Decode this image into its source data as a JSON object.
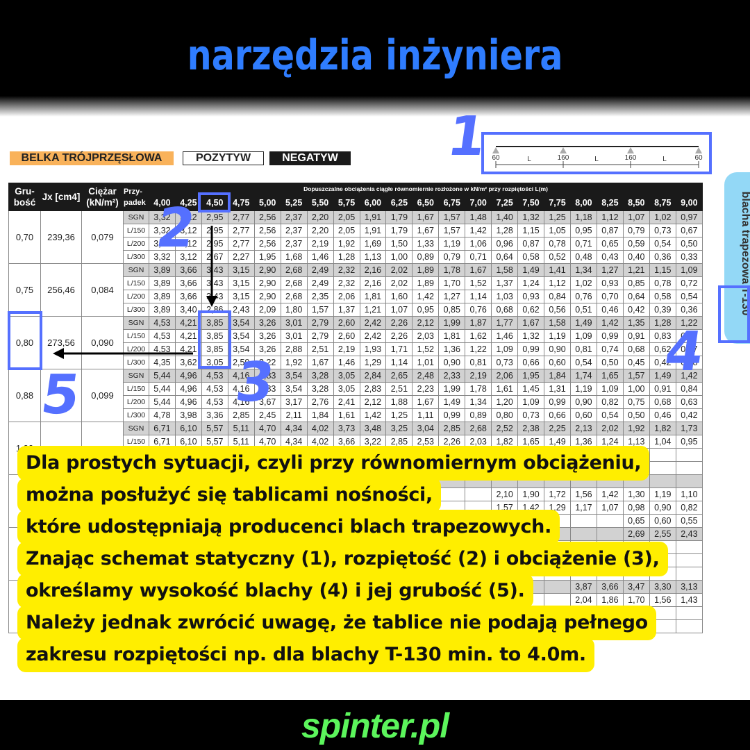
{
  "header": {
    "title": "narzędzia inżyniera"
  },
  "footer": {
    "brand": "spinter.pl"
  },
  "labels": {
    "beam": "BELKA TRÓJPRZĘSŁOWA",
    "positive": "POZYTYW",
    "negative": "NEGATYW"
  },
  "diagram": {
    "supports": [
      "60",
      "160",
      "160",
      "60"
    ],
    "span_label": "L"
  },
  "side_tab": {
    "label": "blacha trapezowa T-130",
    "color": "#93d8f6"
  },
  "annotations": {
    "numbers": [
      "1",
      "2",
      "3",
      "4",
      "5"
    ],
    "color": "#5570ff"
  },
  "colors": {
    "title": "#2f7dff",
    "brand": "#5cf55c",
    "callout": "#ffee00",
    "beam_label": "#f9b25a"
  },
  "table": {
    "headers": {
      "thickness": "Gru-\nbość",
      "jx": "Jx [cm4]",
      "weight": "Ciężar\n(kN/m²)",
      "case": "Przy-\npadek",
      "load_title": "Dopuszczalne obciążenia ciągłe równomiernie rozłożone w kN/m² przy rozpiętości L(m)"
    },
    "spans": [
      "4,00",
      "4,25",
      "4,50",
      "4,75",
      "5,00",
      "5,25",
      "5,50",
      "5,75",
      "6,00",
      "6,25",
      "6,50",
      "6,75",
      "7,00",
      "7,25",
      "7,50",
      "7,75",
      "8,00",
      "8,25",
      "8,50",
      "8,75",
      "9,00"
    ],
    "groups": [
      {
        "thickness": "0,70",
        "jx": "239,36",
        "weight": "0,079",
        "rows": [
          {
            "case": "SGN",
            "values": [
              "3,32",
              "3,12",
              "2,95",
              "2,77",
              "2,56",
              "2,37",
              "2,20",
              "2,05",
              "1,91",
              "1,79",
              "1,67",
              "1,57",
              "1,48",
              "1,40",
              "1,32",
              "1,25",
              "1,18",
              "1,12",
              "1,07",
              "1,02",
              "0,97"
            ]
          },
          {
            "case": "L/150",
            "values": [
              "3,32",
              "3,12",
              "2,95",
              "2,77",
              "2,56",
              "2,37",
              "2,20",
              "2,05",
              "1,91",
              "1,79",
              "1,67",
              "1,57",
              "1,42",
              "1,28",
              "1,15",
              "1,05",
              "0,95",
              "0,87",
              "0,79",
              "0,73",
              "0,67"
            ]
          },
          {
            "case": "L/200",
            "values": [
              "3,32",
              "3,12",
              "2,95",
              "2,77",
              "2,56",
              "2,37",
              "2,19",
              "1,92",
              "1,69",
              "1,50",
              "1,33",
              "1,19",
              "1,06",
              "0,96",
              "0,87",
              "0,78",
              "0,71",
              "0,65",
              "0,59",
              "0,54",
              "0,50"
            ]
          },
          {
            "case": "L/300",
            "values": [
              "3,32",
              "3,12",
              "2,67",
              "2,27",
              "1,95",
              "1,68",
              "1,46",
              "1,28",
              "1,13",
              "1,00",
              "0,89",
              "0,79",
              "0,71",
              "0,64",
              "0,58",
              "0,52",
              "0,48",
              "0,43",
              "0,40",
              "0,36",
              "0,33"
            ]
          }
        ]
      },
      {
        "thickness": "0,75",
        "jx": "256,46",
        "weight": "0,084",
        "rows": [
          {
            "case": "SGN",
            "values": [
              "3,89",
              "3,66",
              "3,43",
              "3,15",
              "2,90",
              "2,68",
              "2,49",
              "2,32",
              "2,16",
              "2,02",
              "1,89",
              "1,78",
              "1,67",
              "1,58",
              "1,49",
              "1,41",
              "1,34",
              "1,27",
              "1,21",
              "1,15",
              "1,09"
            ]
          },
          {
            "case": "L/150",
            "values": [
              "3,89",
              "3,66",
              "3,43",
              "3,15",
              "2,90",
              "2,68",
              "2,49",
              "2,32",
              "2,16",
              "2,02",
              "1,89",
              "1,70",
              "1,52",
              "1,37",
              "1,24",
              "1,12",
              "1,02",
              "0,93",
              "0,85",
              "0,78",
              "0,72"
            ]
          },
          {
            "case": "L/200",
            "values": [
              "3,89",
              "3,66",
              "3,43",
              "3,15",
              "2,90",
              "2,68",
              "2,35",
              "2,06",
              "1,81",
              "1,60",
              "1,42",
              "1,27",
              "1,14",
              "1,03",
              "0,93",
              "0,84",
              "0,76",
              "0,70",
              "0,64",
              "0,58",
              "0,54"
            ]
          },
          {
            "case": "L/300",
            "values": [
              "3,89",
              "3,40",
              "2,86",
              "2,43",
              "2,09",
              "1,80",
              "1,57",
              "1,37",
              "1,21",
              "1,07",
              "0,95",
              "0,85",
              "0,76",
              "0,68",
              "0,62",
              "0,56",
              "0,51",
              "0,46",
              "0,42",
              "0,39",
              "0,36"
            ]
          }
        ]
      },
      {
        "thickness": "0,80",
        "jx": "273,56",
        "weight": "0,090",
        "rows": [
          {
            "case": "SGN",
            "values": [
              "4,53",
              "4,21",
              "3,85",
              "3,54",
              "3,26",
              "3,01",
              "2,79",
              "2,60",
              "2,42",
              "2,26",
              "2,12",
              "1,99",
              "1,87",
              "1,77",
              "1,67",
              "1,58",
              "1,49",
              "1,42",
              "1,35",
              "1,28",
              "1,22"
            ]
          },
          {
            "case": "L/150",
            "values": [
              "4,53",
              "4,21",
              "3,85",
              "3,54",
              "3,26",
              "3,01",
              "2,79",
              "2,60",
              "2,42",
              "2,26",
              "2,03",
              "1,81",
              "1,62",
              "1,46",
              "1,32",
              "1,19",
              "1,09",
              "0,99",
              "0,91",
              "0,83",
              "0,77"
            ]
          },
          {
            "case": "L/200",
            "values": [
              "4,53",
              "4,21",
              "3,85",
              "3,54",
              "3,26",
              "2,88",
              "2,51",
              "2,19",
              "1,93",
              "1,71",
              "1,52",
              "1,36",
              "1,22",
              "1,09",
              "0,99",
              "0,90",
              "0,81",
              "0,74",
              "0,68",
              "0,62",
              "0,57"
            ]
          },
          {
            "case": "L/300",
            "values": [
              "4,35",
              "3,62",
              "3,05",
              "2,59",
              "2,22",
              "1,92",
              "1,67",
              "1,46",
              "1,29",
              "1,14",
              "1,01",
              "0,90",
              "0,81",
              "0,73",
              "0,66",
              "0,60",
              "0,54",
              "0,50",
              "0,45",
              "0,42",
              "0,38"
            ]
          }
        ]
      },
      {
        "thickness": "0,88",
        "jx": "",
        "weight": "0,099",
        "rows": [
          {
            "case": "SGN",
            "values": [
              "5,44",
              "4,96",
              "4,53",
              "4,16",
              "3,83",
              "3,54",
              "3,28",
              "3,05",
              "2,84",
              "2,65",
              "2,48",
              "2,33",
              "2,19",
              "2,06",
              "1,95",
              "1,84",
              "1,74",
              "1,65",
              "1,57",
              "1,49",
              "1,42"
            ]
          },
          {
            "case": "L/150",
            "values": [
              "5,44",
              "4,96",
              "4,53",
              "4,16",
              "3,83",
              "3,54",
              "3,28",
              "3,05",
              "2,83",
              "2,51",
              "2,23",
              "1,99",
              "1,78",
              "1,61",
              "1,45",
              "1,31",
              "1,19",
              "1,09",
              "1,00",
              "0,91",
              "0,84"
            ]
          },
          {
            "case": "L/200",
            "values": [
              "5,44",
              "4,96",
              "4,53",
              "4,16",
              "3,67",
              "3,17",
              "2,76",
              "2,41",
              "2,12",
              "1,88",
              "1,67",
              "1,49",
              "1,34",
              "1,20",
              "1,09",
              "0,99",
              "0,90",
              "0,82",
              "0,75",
              "0,68",
              "0,63"
            ]
          },
          {
            "case": "L/300",
            "values": [
              "4,78",
              "3,98",
              "3,36",
              "2,85",
              "2,45",
              "2,11",
              "1,84",
              "1,61",
              "1,42",
              "1,25",
              "1,11",
              "0,99",
              "0,89",
              "0,80",
              "0,73",
              "0,66",
              "0,60",
              "0,54",
              "0,50",
              "0,46",
              "0,42"
            ]
          }
        ]
      },
      {
        "thickness": "1,00",
        "jx": "",
        "weight": "",
        "rows": [
          {
            "case": "SGN",
            "values": [
              "6,71",
              "6,10",
              "5,57",
              "5,11",
              "4,70",
              "4,34",
              "4,02",
              "3,73",
              "3,48",
              "3,25",
              "3,04",
              "2,85",
              "2,68",
              "2,52",
              "2,38",
              "2,25",
              "2,13",
              "2,02",
              "1,92",
              "1,82",
              "1,73"
            ]
          },
          {
            "case": "L/150",
            "values": [
              "6,71",
              "6,10",
              "5,57",
              "5,11",
              "4,70",
              "4,34",
              "4,02",
              "3,66",
              "3,22",
              "2,85",
              "2,53",
              "2,26",
              "2,03",
              "1,82",
              "1,65",
              "1,49",
              "1,36",
              "1,24",
              "1,13",
              "1,04",
              "0,95"
            ]
          },
          {
            "case": "",
            "values": []
          },
          {
            "case": "",
            "values": []
          }
        ]
      },
      {
        "thickness": "",
        "jx": "",
        "weight": "",
        "rows": [
          {
            "case": "SGN",
            "values": []
          },
          {
            "case": "",
            "values": [
              null,
              null,
              null,
              null,
              null,
              null,
              null,
              null,
              null,
              null,
              null,
              null,
              null,
              "2,10",
              "1,90",
              "1,72",
              "1,56",
              "1,42",
              "1,30",
              "1,19",
              "1,10"
            ]
          },
          {
            "case": "",
            "values": [
              null,
              null,
              null,
              null,
              null,
              null,
              null,
              null,
              null,
              null,
              null,
              null,
              null,
              "1,57",
              "1,42",
              "1,29",
              "1,17",
              "1,07",
              "0,98",
              "0,90",
              "0,82"
            ]
          },
          {
            "case": "",
            "values": [
              null,
              null,
              null,
              null,
              null,
              null,
              null,
              null,
              null,
              null,
              null,
              null,
              null,
              null,
              null,
              null,
              null,
              null,
              "0,65",
              "0,60",
              "0,55"
            ]
          }
        ]
      },
      {
        "thickness": "",
        "jx": "",
        "weight": "",
        "rows": [
          {
            "case": "SGN",
            "values": [
              null,
              null,
              null,
              null,
              null,
              null,
              null,
              null,
              null,
              null,
              null,
              null,
              null,
              null,
              null,
              null,
              null,
              null,
              "2,69",
              "2,55",
              "2,43"
            ]
          },
          {
            "case": "",
            "values": []
          },
          {
            "case": "",
            "values": []
          },
          {
            "case": "",
            "values": []
          }
        ]
      },
      {
        "thickness": "",
        "jx": "",
        "weight": "",
        "rows": [
          {
            "case": "SGN",
            "values": [
              null,
              null,
              null,
              null,
              null,
              null,
              null,
              null,
              null,
              null,
              null,
              null,
              null,
              null,
              null,
              null,
              "3,87",
              "3,66",
              "3,47",
              "3,30",
              "3,13"
            ]
          },
          {
            "case": "",
            "values": [
              null,
              null,
              null,
              null,
              null,
              null,
              null,
              null,
              null,
              null,
              null,
              null,
              null,
              null,
              null,
              null,
              "2,04",
              "1,86",
              "1,70",
              "1,56",
              "1,43"
            ]
          },
          {
            "case": "",
            "values": []
          },
          {
            "case": "",
            "values": []
          }
        ]
      }
    ]
  },
  "callout": {
    "lines": [
      "Dla prostych sytuacji, czyli przy równomiernym obciążeniu,",
      "można posłużyć się tablicami nośności,",
      "które udostępniają producenci blach trapezowych.",
      "Znając schemat statyczny (1), rozpiętość (2) i obciążenie (3),",
      "określamy wysokość blachy (4) i jej grubość (5).",
      "Należy jednak zwrócić uwagę, że tablice nie podają pełnego",
      "zakresu rozpiętości np. dla blachy T-130 min. to 4.0m."
    ]
  }
}
